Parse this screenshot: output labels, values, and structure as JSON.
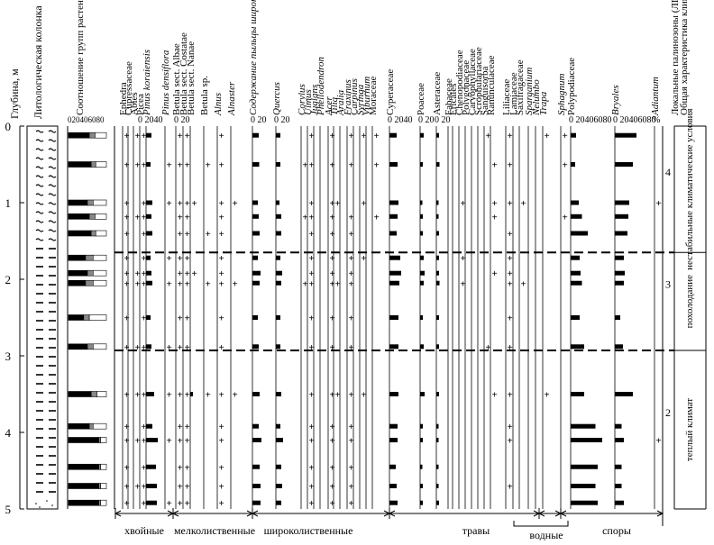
{
  "chart_data": {
    "type": "pollen-diagram",
    "y_axis": {
      "label": "Глубина, м",
      "ticks": [
        "0",
        "1",
        "2",
        "3",
        "4",
        "5"
      ],
      "range": [
        0,
        5
      ]
    },
    "lithology_label": "Литологическая колонка",
    "ratio_column": {
      "label": "Соотношение групп растений: древесно-кустарниковых, трав и кустарничков, споровых растений",
      "scale": [
        "0",
        "20",
        "40",
        "60",
        "80"
      ]
    },
    "taxa": [
      {
        "name": "Ephedra",
        "italic": false
      },
      {
        "name": "Cupressaceae",
        "italic": false
      },
      {
        "name": "Abies",
        "italic": false
      },
      {
        "name": "Picea",
        "italic": false
      },
      {
        "name": "Pinus koraiensis",
        "italic": true
      },
      {
        "name": "Pinus densiflora",
        "italic": true
      },
      {
        "name": "Betula sect. Albae",
        "italic": false
      },
      {
        "name": "Betula sect. Costatae",
        "italic": false
      },
      {
        "name": "Betula sect. Nanae",
        "italic": false
      },
      {
        "name": "Betula sp.",
        "italic": false
      },
      {
        "name": "Alnus",
        "italic": true
      },
      {
        "name": "Alnaster",
        "italic": true
      },
      {
        "name": "Содержание пыльцы широколиственных пород",
        "italic": true
      },
      {
        "name": "Quercus",
        "italic": true
      },
      {
        "name": "Corylus",
        "italic": true
      },
      {
        "name": "Ulmus",
        "italic": true
      },
      {
        "name": "Juglans",
        "italic": true
      },
      {
        "name": "Phellodendron",
        "italic": true
      },
      {
        "name": "Acer",
        "italic": true
      },
      {
        "name": "Tilia",
        "italic": true
      },
      {
        "name": "Aralia",
        "italic": true
      },
      {
        "name": "Fraxinus",
        "italic": true
      },
      {
        "name": "Carpinus",
        "italic": true
      },
      {
        "name": "Syringa",
        "italic": true
      },
      {
        "name": "Viburnum",
        "italic": true
      },
      {
        "name": "Moraceae",
        "italic": false
      },
      {
        "name": "Cyperaceae",
        "italic": false
      },
      {
        "name": "Poaceae",
        "italic": false
      },
      {
        "name": "Asteraceae",
        "italic": false
      },
      {
        "name": "Fabaceae",
        "italic": false
      },
      {
        "name": "Ericales",
        "italic": false
      },
      {
        "name": "Chenopodiaceae",
        "italic": false
      },
      {
        "name": "Polygonaceae",
        "italic": false
      },
      {
        "name": "Caryophyllaceae",
        "italic": false
      },
      {
        "name": "Scrophulariaceae",
        "italic": false
      },
      {
        "name": "Sanguisorba",
        "italic": false
      },
      {
        "name": "Ranunculaceae",
        "italic": false
      },
      {
        "name": "Liliaceae",
        "italic": false
      },
      {
        "name": "Lamiaceae",
        "italic": false
      },
      {
        "name": "Saxifragaceae",
        "italic": false
      },
      {
        "name": "Sparganium",
        "italic": true
      },
      {
        "name": "Nelumbo",
        "italic": true
      },
      {
        "name": "Trapa",
        "italic": true
      },
      {
        "name": "Sphagnum",
        "italic": true
      },
      {
        "name": "Polypodiaceae",
        "italic": false
      },
      {
        "name": "Bryales",
        "italic": true
      },
      {
        "name": "Adiantum",
        "italic": true
      }
    ],
    "scale_labels": [
      {
        "text": "0 2040",
        "under": "Picea"
      },
      {
        "text": "0 20",
        "under": "Betula sect. Albae"
      },
      {
        "text": "0 20",
        "under": "Содержание пыльцы широколиственных пород"
      },
      {
        "text": "0 20",
        "under": "Quercus"
      },
      {
        "text": "0 2040",
        "under": "Cyperaceae"
      },
      {
        "text": "0 20",
        "under": "Poaceae"
      },
      {
        "text": "0 20",
        "under": "Asteraceae"
      },
      {
        "text": "0 20406080",
        "under": "Polypodiaceae"
      },
      {
        "text": "0 20406080",
        "under": "Bryales"
      },
      {
        "text": "%",
        "under": "Adiantum"
      }
    ],
    "zone_column_labels": [
      "Локальные палинозоны (ЛПЗ)",
      "Общая характеристика климата"
    ],
    "zones": [
      {
        "id": "4",
        "top": 0,
        "bottom": 1.65,
        "climate": "нестабильные климатические условия"
      },
      {
        "id": "3",
        "top": 1.65,
        "bottom": 2.93,
        "climate": "похолодание"
      },
      {
        "id": "2",
        "top": 2.93,
        "bottom": 5.0,
        "climate": "теплый климат"
      }
    ],
    "samples": [
      {
        "depth": 0.12,
        "ratio": [
          55,
          15,
          30
        ],
        "values": {
          "Ephedra": "+",
          "Abies": "+",
          "Picea": "+",
          "Pinus koraiensis": 12,
          "Betula sect. Albae": "+",
          "Betula sect. Costatae": "+",
          "Alnus": "+",
          "Содержание пыльцы широколиственных пород": 14,
          "Quercus": 10,
          "Ulmus": "+",
          "Acer": "+",
          "Fraxinus": "+",
          "Syringa": "+",
          "Moraceae": "+",
          "Cyperaceae": 16,
          "Poaceae": 8,
          "Asteraceae": 6,
          "Sanguisorba": "+",
          "Liliaceae": "+",
          "Trapa": "+",
          "Sphagnum": "+",
          "Polypodiaceae": 12,
          "Bryales": 48
        }
      },
      {
        "depth": 0.5,
        "ratio": [
          60,
          12,
          28
        ],
        "values": {
          "Ephedra": "+",
          "Abies": "+",
          "Picea": "+",
          "Pinus koraiensis": 10,
          "Pinus densiflora": "+",
          "Betula sect. Albae": "+",
          "Betula sect. Costatae": "+",
          "Betula sp.": "+",
          "Alnus": "+",
          "Содержание пыльцы широколиственных пород": 15,
          "Quercus": 10,
          "Corylus": "+",
          "Ulmus": "+",
          "Acer": "+",
          "Fraxinus": "+",
          "Moraceae": "+",
          "Cyperaceae": 18,
          "Poaceae": 6,
          "Asteraceae": 7,
          "Ranunculaceae": "+",
          "Liliaceae": "+",
          "Sphagnum": "+",
          "Polypodiaceae": 10,
          "Bryales": 40
        }
      },
      {
        "depth": 1.0,
        "ratio": [
          50,
          15,
          35
        ],
        "values": {
          "Ephedra": "+",
          "Picea": "+",
          "Pinus koraiensis": 14,
          "Pinus densiflora": "+",
          "Betula sect. Albae": "+",
          "Betula sect. Costatae": "+",
          "Betula sect. Nanae": "+",
          "Alnus": "+",
          "Alnaster": "+",
          "Содержание пыльцы широколиственных пород": 12,
          "Quercus": 8,
          "Ulmus": "+",
          "Acer": "+",
          "Tilia": "+",
          "Syringa": "+",
          "Cyperaceae": 20,
          "Poaceae": 5,
          "Asteraceae": 5,
          "Chenopodiaceae": "+",
          "Ranunculaceae": "+",
          "Liliaceae": "+",
          "Saxifragaceae": "+",
          "Polypodiaceae": 18,
          "Bryales": 32,
          "Adiantum": "+"
        }
      },
      {
        "depth": 1.18,
        "ratio": [
          55,
          15,
          30
        ],
        "values": {
          "Ephedra": "+",
          "Abies": "+",
          "Picea": "+",
          "Pinus koraiensis": 12,
          "Betula sect. Albae": "+",
          "Betula sect. Costatae": "+",
          "Alnus": "+",
          "Содержание пыльцы широколиственных пород": 14,
          "Quercus": 12,
          "Corylus": "+",
          "Ulmus": "+",
          "Acer": "+",
          "Fraxinus": "+",
          "Moraceae": "+",
          "Cyperaceae": 18,
          "Poaceae": 6,
          "Asteraceae": 5,
          "Ranunculaceae": "+",
          "Sphagnum": "+",
          "Polypodiaceae": 25,
          "Bryales": 30
        }
      },
      {
        "depth": 1.4,
        "ratio": [
          60,
          12,
          28
        ],
        "values": {
          "Ephedra": "+",
          "Picea": "+",
          "Pinus koraiensis": 14,
          "Betula sect. Albae": "+",
          "Betula sect. Costatae": "+",
          "Betula sp.": "+",
          "Alnus": "+",
          "Содержание пыльцы широколиственных пород": 16,
          "Quercus": 12,
          "Ulmus": "+",
          "Acer": "+",
          "Fraxinus": "+",
          "Cyperaceae": 16,
          "Poaceae": 6,
          "Asteraceae": 6,
          "Liliaceae": "+",
          "Polypodiaceae": 38,
          "Bryales": 28
        }
      },
      {
        "depth": 1.72,
        "ratio": [
          45,
          20,
          35
        ],
        "values": {
          "Ephedra": "+",
          "Picea": "+",
          "Pinus koraiensis": 10,
          "Pinus densiflora": "+",
          "Betula sect. Albae": "+",
          "Betula sect. Costatae": "+",
          "Alnus": "+",
          "Содержание пыльцы широколиственных пород": 12,
          "Quercus": 10,
          "Ulmus": "+",
          "Acer": "+",
          "Fraxinus": "+",
          "Syringa": "+",
          "Cyperaceae": 24,
          "Poaceae": 8,
          "Asteraceae": 6,
          "Chenopodiaceae": "+",
          "Liliaceae": "+",
          "Polypodiaceae": 20,
          "Bryales": 20
        }
      },
      {
        "depth": 1.92,
        "ratio": [
          50,
          15,
          35
        ],
        "values": {
          "Ephedra": "+",
          "Abies": "+",
          "Picea": "+",
          "Pinus koraiensis": 12,
          "Betula sect. Albae": "+",
          "Betula sect. Costatae": "+",
          "Betula sect. Nanae": "+",
          "Alnus": "+",
          "Содержание пыльцы широколиственных пород": 18,
          "Quercus": 14,
          "Ulmus": "+",
          "Acer": "+",
          "Fraxinus": "+",
          "Cyperaceae": 26,
          "Poaceae": 10,
          "Asteraceae": 6,
          "Ranunculaceae": "+",
          "Liliaceae": "+",
          "Polypodiaceae": 22,
          "Bryales": 22
        }
      },
      {
        "depth": 2.05,
        "ratio": [
          45,
          20,
          35
        ],
        "values": {
          "Ephedra": "+",
          "Abies": "+",
          "Picea": "+",
          "Pinus koraiensis": 14,
          "Pinus densiflora": "+",
          "Betula sect. Albae": "+",
          "Betula sect. Costatae": "+",
          "Betula sp.": "+",
          "Alnus": "+",
          "Alnaster": "+",
          "Содержание пыльцы широколиственных пород": 16,
          "Quercus": 12,
          "Corylus": "+",
          "Ulmus": "+",
          "Acer": "+",
          "Tilia": "+",
          "Fraxinus": "+",
          "Cyperaceae": 22,
          "Poaceae": 8,
          "Asteraceae": 7,
          "Chenopodiaceae": "+",
          "Liliaceae": "+",
          "Saxifragaceae": "+",
          "Polypodiaceae": 25,
          "Bryales": 20
        }
      },
      {
        "depth": 2.5,
        "ratio": [
          40,
          15,
          45
        ],
        "values": {
          "Ephedra": "+",
          "Picea": "+",
          "Pinus koraiensis": 10,
          "Betula sect. Albae": "+",
          "Betula sect. Costatae": "+",
          "Alnus": "+",
          "Содержание пыльцы широколиственных пород": 12,
          "Quercus": 10,
          "Ulmus": "+",
          "Acer": "+",
          "Fraxinus": "+",
          "Cyperaceae": 20,
          "Poaceae": 6,
          "Asteraceae": 6,
          "Liliaceae": "+",
          "Polypodiaceae": 20,
          "Bryales": 12
        }
      },
      {
        "depth": 2.88,
        "ratio": [
          50,
          15,
          35
        ],
        "values": {
          "Ephedra": "+",
          "Abies": "+",
          "Picea": "+",
          "Pinus koraiensis": 12,
          "Pinus densiflora": "+",
          "Betula sect. Albae": "+",
          "Betula sect. Costatae": "+",
          "Alnus": "+",
          "Содержание пыльцы широколиственных пород": 14,
          "Quercus": 10,
          "Ulmus": "+",
          "Acer": "+",
          "Fraxinus": "+",
          "Cyperaceae": 20,
          "Poaceae": 8,
          "Asteraceae": 6,
          "Sanguisorba": "+",
          "Liliaceae": "+",
          "Polypodiaceae": 30,
          "Bryales": 18
        }
      },
      {
        "depth": 3.5,
        "ratio": [
          60,
          15,
          25
        ],
        "values": {
          "Ephedra": "+",
          "Abies": "+",
          "Picea": "+",
          "Pinus koraiensis": 18,
          "Pinus densiflora": "+",
          "Betula sect. Albae": "+",
          "Betula sect. Costatae": "+",
          "Betula sect. Nanae": 6,
          "Betula sp.": "+",
          "Alnus": "+",
          "Alnaster": "+",
          "Содержание пыльцы широколиственных пород": 16,
          "Quercus": 12,
          "Ulmus": "+",
          "Acer": "+",
          "Tilia": "+",
          "Fraxinus": "+",
          "Syringa": "+",
          "Cyperaceae": 20,
          "Poaceae": 10,
          "Asteraceae": 6,
          "Ranunculaceae": "+",
          "Liliaceae": "+",
          "Trapa": "+",
          "Polypodiaceae": 30,
          "Bryales": 40
        }
      },
      {
        "depth": 3.92,
        "ratio": [
          55,
          10,
          35
        ],
        "values": {
          "Ephedra": "+",
          "Picea": "+",
          "Pinus koraiensis": 14,
          "Betula sect. Albae": "+",
          "Betula sect. Costatae": "+",
          "Alnus": "+",
          "Содержание пыльцы широколиственных пород": 14,
          "Quercus": 10,
          "Ulmus": "+",
          "Acer": "+",
          "Fraxinus": "+",
          "Cyperaceae": 18,
          "Poaceae": 6,
          "Asteraceae": 5,
          "Liliaceae": "+",
          "Polypodiaceae": 55,
          "Bryales": 15
        }
      },
      {
        "depth": 4.1,
        "ratio": [
          80,
          5,
          15
        ],
        "values": {
          "Ephedra": "+",
          "Abies": "+",
          "Picea": "+",
          "Pinus koraiensis": 26,
          "Pinus densiflora": "+",
          "Betula sect. Albae": "+",
          "Betula sect. Costatae": "+",
          "Alnus": "+",
          "Содержание пыльцы широколиственных пород": 20,
          "Quercus": 16,
          "Ulmus": "+",
          "Acer": "+",
          "Fraxinus": "+",
          "Cyperaceae": 18,
          "Poaceae": 6,
          "Asteraceae": 5,
          "Liliaceae": "+",
          "Polypodiaceae": 70,
          "Bryales": 20,
          "Adiantum": "+"
        }
      },
      {
        "depth": 4.45,
        "ratio": [
          80,
          5,
          15
        ],
        "values": {
          "Ephedra": "+",
          "Picea": "+",
          "Pinus koraiensis": 22,
          "Betula sect. Albae": "+",
          "Betula sect. Costatae": "+",
          "Alnus": "+",
          "Содержание пыльцы широколиственных пород": 16,
          "Quercus": 12,
          "Ulmus": "+",
          "Acer": "+",
          "Fraxinus": "+",
          "Cyperaceae": 14,
          "Poaceae": 5,
          "Asteraceae": 5,
          "Polypodiaceae": 60,
          "Bryales": 15
        }
      },
      {
        "depth": 4.7,
        "ratio": [
          80,
          5,
          15
        ],
        "values": {
          "Ephedra": "+",
          "Abies": "+",
          "Picea": "+",
          "Pinus koraiensis": 24,
          "Betula sect. Albae": "+",
          "Betula sect. Costatae": "+",
          "Alnus": "+",
          "Содержание пыльцы широколиственных пород": 18,
          "Quercus": 14,
          "Ulmus": "+",
          "Acer": "+",
          "Fraxinus": "+",
          "Cyperaceae": 16,
          "Poaceae": 6,
          "Asteraceae": 5,
          "Liliaceae": "+",
          "Polypodiaceae": 55,
          "Bryales": 15
        }
      },
      {
        "depth": 4.92,
        "ratio": [
          80,
          5,
          15
        ],
        "values": {
          "Ephedra": "+",
          "Picea": "+",
          "Pinus koraiensis": 24,
          "Pinus densiflora": "+",
          "Betula sect. Albae": "+",
          "Betula sect. Costatae": "+",
          "Alnus": "+",
          "Содержание пыльцы широколиственных пород": 18,
          "Quercus": 12,
          "Ulmus": "+",
          "Acer": "+",
          "Fraxinus": "+",
          "Cyperaceae": 18,
          "Poaceae": 6,
          "Asteraceae": 6,
          "Polypodiaceae": 60,
          "Bryales": 20
        }
      }
    ],
    "groups": [
      {
        "label": "хвойные",
        "from": "Ephedra",
        "to": "Pinus densiflora"
      },
      {
        "label": "мелколиственные",
        "from": "Betula sect. Albae",
        "to": "Alnaster"
      },
      {
        "label": "широколиственные",
        "from": "Содержание пыльцы широколиственных пород",
        "to": "Moraceae"
      },
      {
        "label": "травы",
        "from": "Cyperaceae",
        "to": "Saxifragaceae"
      },
      {
        "label": "водные",
        "from": "Sparganium",
        "to": "Trapa"
      },
      {
        "label": "споры",
        "from": "Sphagnum",
        "to": "Adiantum"
      }
    ]
  }
}
